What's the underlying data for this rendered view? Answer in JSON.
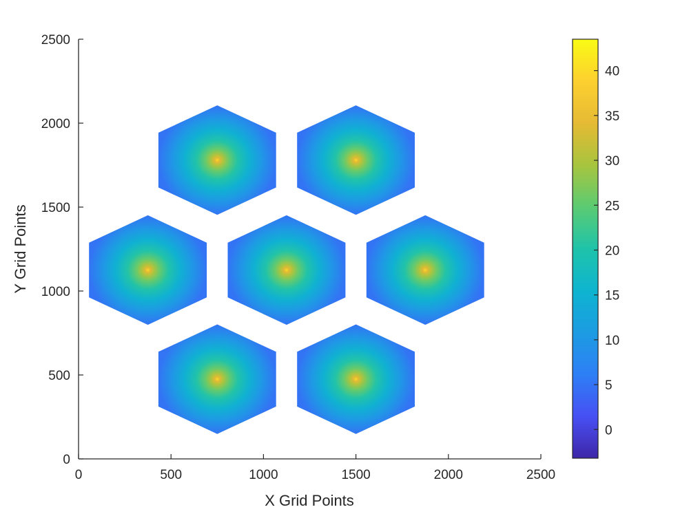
{
  "chart_data": {
    "type": "heatmap",
    "title": "",
    "xlabel": "X Grid Points",
    "ylabel": "Y Grid Points",
    "xlim": [
      0,
      2500
    ],
    "ylim": [
      0,
      2500
    ],
    "xticks": [
      0,
      500,
      1000,
      1500,
      2000,
      2500
    ],
    "yticks": [
      0,
      500,
      1000,
      1500,
      2000,
      2500
    ],
    "grid": false,
    "colormap": "parula",
    "colorbar": {
      "range": [
        -3.2,
        43.5
      ],
      "ticks": [
        0,
        5,
        10,
        15,
        20,
        25,
        30,
        35,
        40
      ],
      "placement": "right"
    },
    "cells": [
      {
        "center": [
          750,
          1780
        ],
        "peak": 40,
        "edge": 5
      },
      {
        "center": [
          1500,
          1780
        ],
        "peak": 40,
        "edge": 5
      },
      {
        "center": [
          375,
          1125
        ],
        "peak": 40,
        "edge": 5
      },
      {
        "center": [
          1125,
          1125
        ],
        "peak": 40,
        "edge": 5
      },
      {
        "center": [
          1875,
          1125
        ],
        "peak": 40,
        "edge": 5
      },
      {
        "center": [
          750,
          475
        ],
        "peak": 40,
        "edge": 5
      },
      {
        "center": [
          1500,
          475
        ],
        "peak": 40,
        "edge": 5
      }
    ],
    "cell_circumradius": 375,
    "colors": {
      "parula_low": "#3e26a8",
      "parula_mid": "#1fb8c1",
      "parula_high": "#f9fb15",
      "axis": "#262626"
    }
  }
}
